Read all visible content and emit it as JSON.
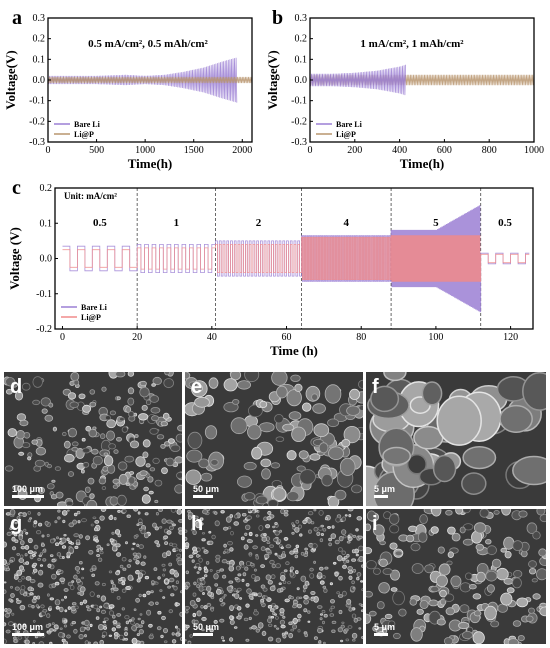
{
  "panels": {
    "a": {
      "letter": "a",
      "condition": "0.5 mA/cm², 0.5 mAh/cm²"
    },
    "b": {
      "letter": "b",
      "condition": "1 mA/cm², 1 mAh/cm²"
    },
    "c": {
      "letter": "c",
      "unit_label": "Unit: mA/cm²"
    }
  },
  "colors": {
    "bare_li": "#9b7fd4",
    "li_at_p": "#b9956e",
    "li_at_p_c": "#f08a8a"
  },
  "chart_data": [
    {
      "id": "a",
      "type": "line",
      "xlabel": "Time(h)",
      "ylabel": "Voltage(V)",
      "xlim": [
        0,
        2100
      ],
      "ylim": [
        -0.3,
        0.3
      ],
      "xticks": [
        0,
        500,
        1000,
        1500,
        2000
      ],
      "yticks": [
        -0.3,
        -0.2,
        -0.1,
        0.0,
        0.1,
        0.2,
        0.3
      ],
      "legend": "bottom-left",
      "series": [
        {
          "name": "Bare Li",
          "x": [
            0,
            500,
            800,
            1000,
            1200,
            1400,
            1600,
            1800,
            1950
          ],
          "amplitude": [
            0.02,
            0.02,
            0.025,
            0.02,
            0.025,
            0.04,
            0.06,
            0.09,
            0.11
          ]
        },
        {
          "name": "Li@P",
          "x": [
            0,
            500,
            1000,
            1500,
            2000,
            2100
          ],
          "amplitude": [
            0.015,
            0.015,
            0.015,
            0.015,
            0.015,
            0.015
          ]
        }
      ]
    },
    {
      "id": "b",
      "type": "line",
      "xlabel": "Time(h)",
      "ylabel": "Voltage(V)",
      "xlim": [
        0,
        1000
      ],
      "ylim": [
        -0.3,
        0.3
      ],
      "xticks": [
        0,
        200,
        400,
        600,
        800,
        1000
      ],
      "yticks": [
        -0.3,
        -0.2,
        -0.1,
        0.0,
        0.1,
        0.2,
        0.3
      ],
      "legend": "bottom-left",
      "series": [
        {
          "name": "Bare Li",
          "x": [
            0,
            100,
            200,
            300,
            400,
            430
          ],
          "amplitude": [
            0.03,
            0.03,
            0.035,
            0.045,
            0.065,
            0.075
          ]
        },
        {
          "name": "Li@P",
          "x": [
            0,
            200,
            400,
            600,
            800,
            1000
          ],
          "amplitude": [
            0.025,
            0.025,
            0.025,
            0.025,
            0.025,
            0.025
          ]
        }
      ]
    },
    {
      "id": "c",
      "type": "line",
      "xlabel": "Time (h)",
      "ylabel": "Voltage (V)",
      "xlim": [
        -2,
        126
      ],
      "ylim": [
        -0.2,
        0.2
      ],
      "xticks": [
        0,
        20,
        40,
        60,
        80,
        100,
        120
      ],
      "yticks": [
        -0.2,
        -0.1,
        0.0,
        0.1,
        0.2
      ],
      "legend": "bottom-left",
      "segments": [
        {
          "label": "0.5",
          "start": 0,
          "end": 20,
          "period": 4,
          "bare_amp": 0.035,
          "lip_amp": 0.025
        },
        {
          "label": "1",
          "start": 20,
          "end": 41,
          "period": 2,
          "bare_amp": 0.04,
          "lip_amp": 0.03
        },
        {
          "label": "2",
          "start": 41,
          "end": 64,
          "period": 1,
          "bare_amp": 0.05,
          "lip_amp": 0.04
        },
        {
          "label": "4",
          "start": 64,
          "end": 88,
          "period": 0.5,
          "bare_amp": 0.065,
          "lip_amp": 0.06
        },
        {
          "label": "5",
          "start": 88,
          "end": 112,
          "period": 0.4,
          "bare_amp": 0.08,
          "lip_amp": 0.065
        },
        {
          "label": "0.5",
          "start": 112,
          "end": 125,
          "period": 4,
          "bare_amp": 0.015,
          "lip_amp": 0.012
        }
      ],
      "series": [
        {
          "name": "Bare Li"
        },
        {
          "name": "Li@P"
        }
      ]
    }
  ],
  "sem_images": [
    {
      "letter": "d",
      "scale": "100 μm"
    },
    {
      "letter": "e",
      "scale": "50 μm"
    },
    {
      "letter": "f",
      "scale": "5 μm"
    },
    {
      "letter": "g",
      "scale": "100 μm"
    },
    {
      "letter": "h",
      "scale": "50 μm"
    },
    {
      "letter": "i",
      "scale": "5 μm"
    }
  ]
}
